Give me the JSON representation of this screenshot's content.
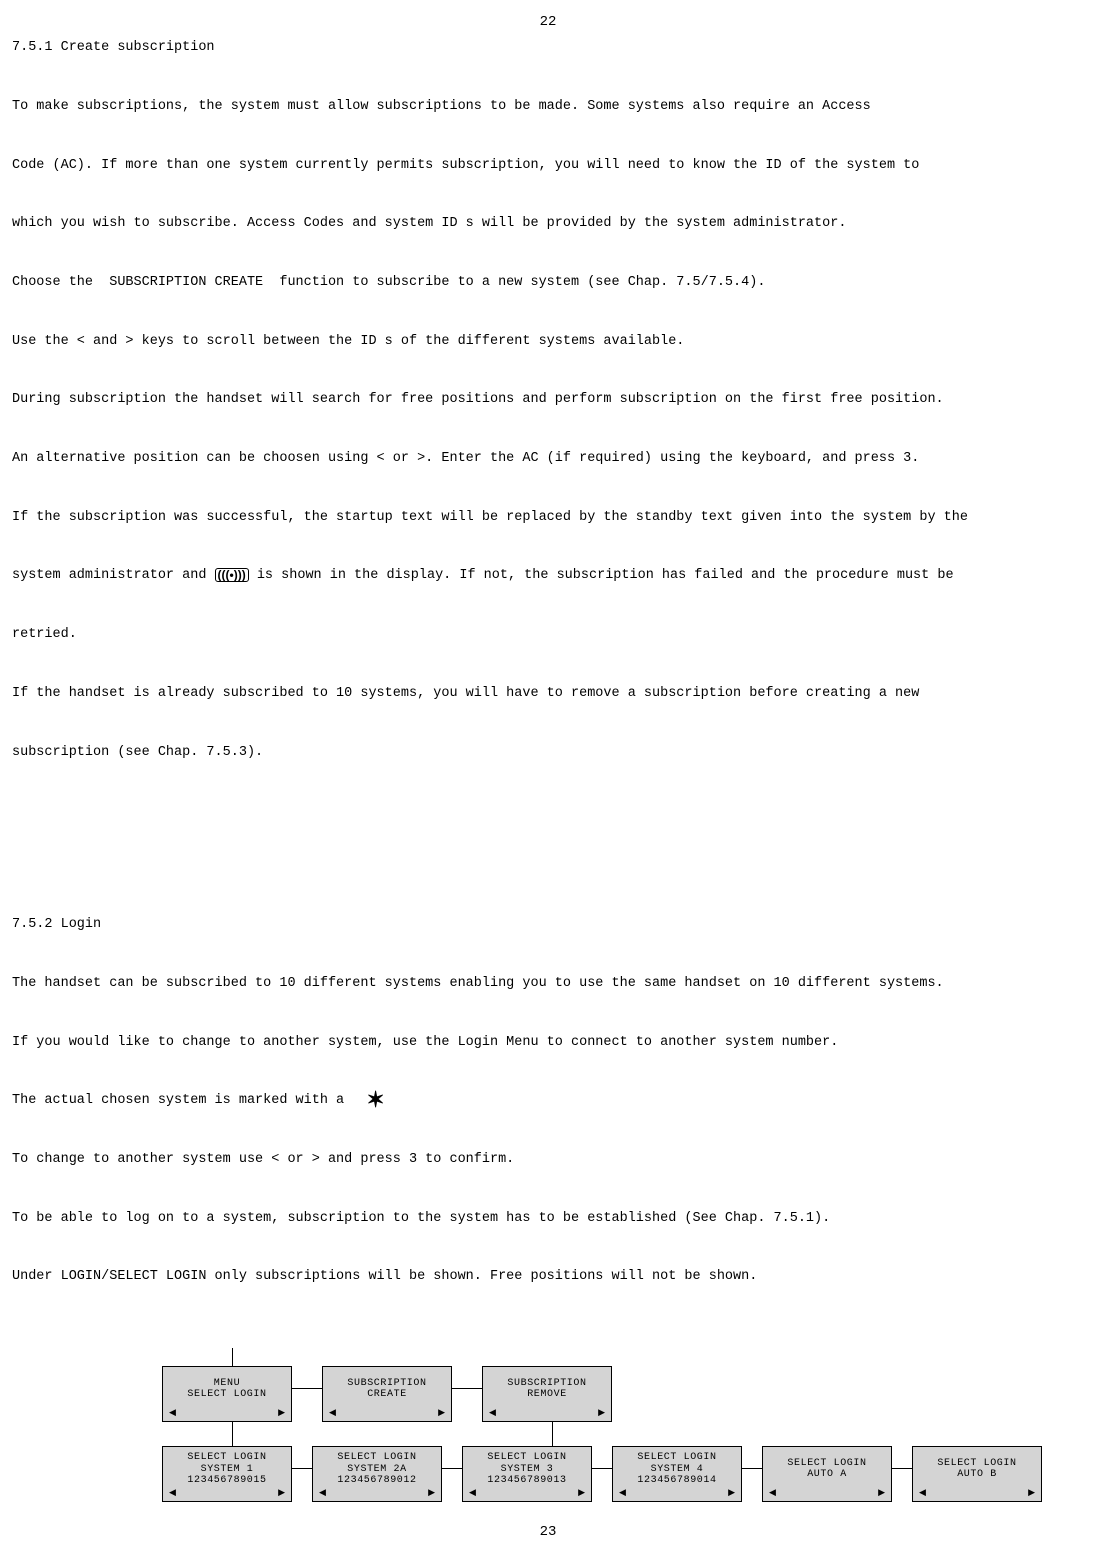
{
  "page_number_top": "22",
  "page_number_bottom": "23",
  "section1": {
    "heading": "7.5.1 Create subscription",
    "p1": "To make subscriptions, the system must allow subscriptions to be made. Some systems also require an Access",
    "p2": "Code (AC). If more than one system currently permits subscription, you will need to know the ID of the system to",
    "p3": "which you wish to subscribe. Access Codes and system ID s will be provided by the system administrator.",
    "p4": "Choose the  SUBSCRIPTION CREATE  function to subscribe to a new system (see Chap. 7.5/7.5.4).",
    "p5": "Use the < and > keys to scroll between the ID s of the different systems available.",
    "p6": "During subscription the handset will search for free positions and perform subscription on the first free position.",
    "p7": "An alternative position can be choosen using < or >. Enter the AC (if required) using the keyboard, and press 3.",
    "p8a": "If the subscription was successful, the startup text will be replaced by the standby text given into the system by the",
    "p8b_pre": "system administrator and ",
    "p8b_post": " is shown in the display. If not, the subscription has failed and the procedure must be",
    "p8c": "retried.",
    "p9": "If the handset is already subscribed to 10 systems, you will have to remove a subscription before creating a new",
    "p10": "subscription (see Chap. 7.5.3)."
  },
  "section2": {
    "heading": "7.5.2 Login",
    "p1": "The handset can be subscribed to 10 different systems enabling you to use the same handset on 10 different systems.",
    "p2": "If you would like to change to another system, use the Login Menu to connect to another system number.",
    "p3_pre": "The actual chosen system is marked with a  ",
    "p4": "To change to another system use < or > and press 3 to confirm.",
    "p5": "To be able to log on to a system, subscription to the system has to be established (See Chap. 7.5.1).",
    "p6": "Under LOGIN/SELECT LOGIN only subscriptions will be shown. Free positions will not be shown."
  },
  "diagram": {
    "top_row": [
      {
        "l1": "MENU",
        "l2": "SELECT LOGIN",
        "l3": ""
      },
      {
        "l1": "SUBSCRIPTION",
        "l2": "CREATE",
        "l3": ""
      },
      {
        "l1": "SUBSCRIPTION",
        "l2": "REMOVE",
        "l3": ""
      }
    ],
    "bottom_row": [
      {
        "l1": "SELECT LOGIN",
        "l2": "SYSTEM 1",
        "l3": "123456789015"
      },
      {
        "l1": "SELECT LOGIN",
        "l2": "SYSTEM 2A",
        "l3": "123456789012"
      },
      {
        "l1": "SELECT LOGIN",
        "l2": "SYSTEM 3",
        "l3": "123456789013"
      },
      {
        "l1": "SELECT LOGIN",
        "l2": "SYSTEM 4",
        "l3": "123456789014"
      },
      {
        "l1": "SELECT LOGIN",
        "l2": "AUTO A",
        "l3": ""
      },
      {
        "l1": "SELECT LOGIN",
        "l2": "AUTO B",
        "l3": ""
      }
    ],
    "arrow_left": "◀",
    "arrow_right": "▶",
    "box_bg": "#d4d4d4",
    "box_border": "#000000",
    "hspacing": 30,
    "hspacing_bottom": 20
  },
  "signal_icon_glyph": "(((•)))",
  "star_glyph": "✶"
}
